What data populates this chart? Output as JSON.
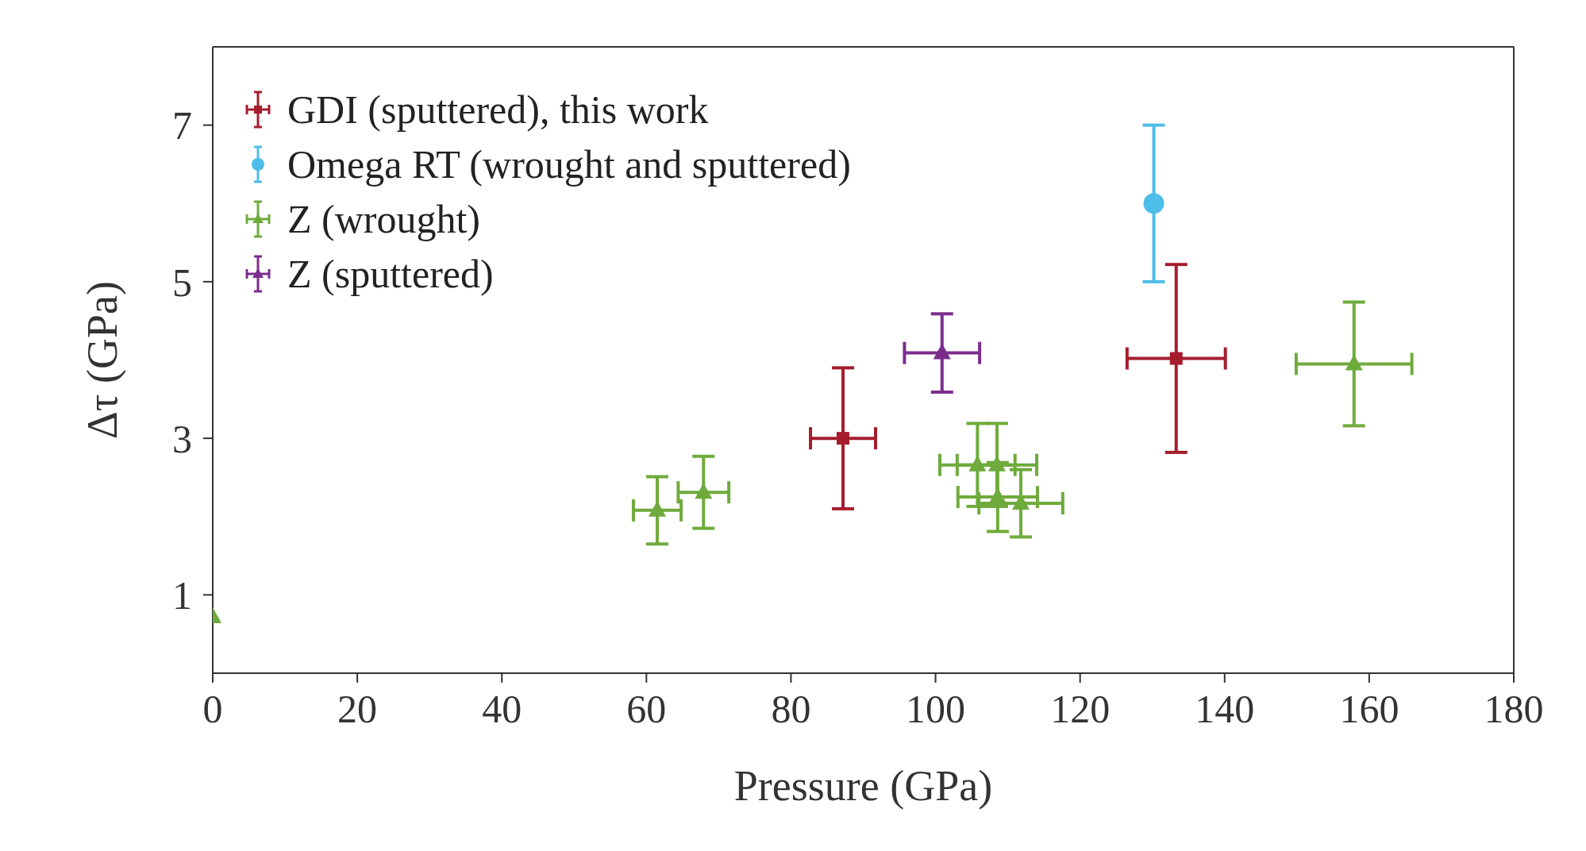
{
  "chart_data": {
    "type": "scatter",
    "xlabel": "Pressure (GPa)",
    "ylabel": "Δτ (GPa)",
    "xlim": [
      0,
      180
    ],
    "xticks": [
      0,
      20,
      40,
      60,
      80,
      100,
      120,
      140,
      160,
      180
    ],
    "ylim": [
      0,
      8
    ],
    "yticks": [
      1,
      3,
      5,
      7
    ],
    "legend": "top left",
    "series": [
      {
        "name": "GDI (sputtered), this work",
        "color": "#a51d2d",
        "marker": "square",
        "x": [
          87.2,
          133.3
        ],
        "values": [
          3.0,
          4.02
        ],
        "xerrors": [
          4.5,
          6.8
        ],
        "errors": [
          0.9,
          1.2
        ]
      },
      {
        "name": "Omega RT (wrought and sputtered)",
        "color": "#4dbde9",
        "marker": "circle",
        "x": [
          130.2
        ],
        "values": [
          6.0
        ],
        "errors": [
          1.0
        ]
      },
      {
        "name": "Z (wrought)",
        "color": "#6fab3c",
        "marker": "triangle",
        "x": [
          0,
          61.5,
          67.9,
          105.8,
          108.5,
          108.6,
          111.8,
          157.9
        ],
        "values": [
          0.72,
          2.08,
          2.31,
          2.66,
          2.66,
          2.25,
          2.17,
          3.95
        ],
        "xerrors": [
          null,
          3.3,
          3.5,
          5.2,
          5.5,
          5.5,
          5.8,
          8
        ],
        "errors": [
          null,
          0.43,
          0.46,
          0.53,
          0.53,
          0.44,
          0.43,
          0.79
        ]
      },
      {
        "name": "Z (sputtered)",
        "color": "#7b2d8e",
        "marker": "triangle",
        "x": [
          100.9
        ],
        "values": [
          4.09
        ],
        "xerrors": [
          5.2
        ],
        "errors": [
          0.5
        ]
      }
    ]
  }
}
